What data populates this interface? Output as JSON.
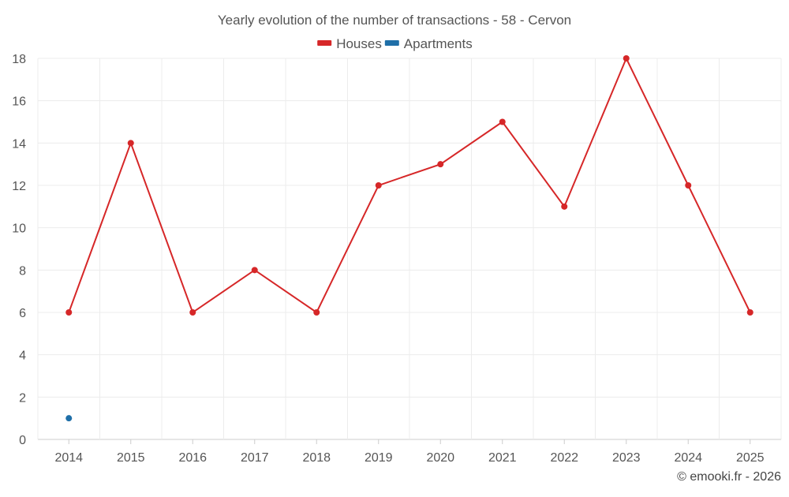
{
  "chart_data": {
    "type": "line",
    "title": "Yearly evolution of the number of transactions - 58 - Cervon",
    "categories": [
      "2014",
      "2015",
      "2016",
      "2017",
      "2018",
      "2019",
      "2020",
      "2021",
      "2022",
      "2023",
      "2024",
      "2025"
    ],
    "series": [
      {
        "name": "Houses",
        "color": "#d62728",
        "values": [
          6,
          14,
          6,
          8,
          6,
          12,
          13,
          15,
          11,
          18,
          12,
          6
        ]
      },
      {
        "name": "Apartments",
        "color": "#1f6fa8",
        "values": [
          1,
          null,
          null,
          null,
          null,
          null,
          null,
          null,
          null,
          null,
          null,
          null
        ]
      }
    ],
    "ylim": [
      0,
      18
    ],
    "yticks": [
      0,
      2,
      4,
      6,
      8,
      10,
      12,
      14,
      16,
      18
    ],
    "xlabel": "",
    "ylabel": "",
    "legend_position": "top-center",
    "grid": true
  },
  "footer": {
    "copyright": "© emooki.fr - 2026"
  }
}
